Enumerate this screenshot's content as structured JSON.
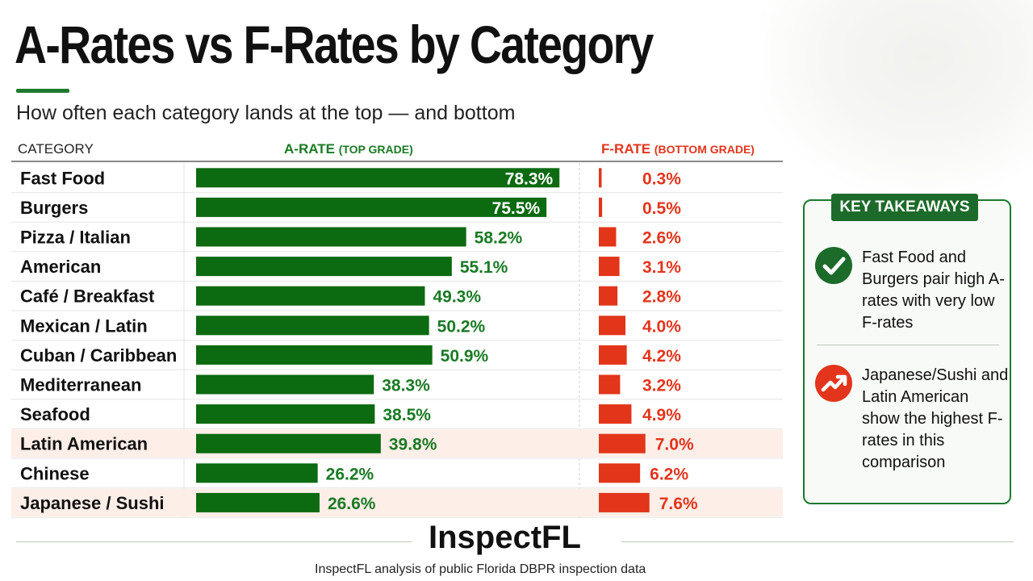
{
  "header": {
    "title": "A-Rates vs F-Rates by Category",
    "subtitle": "How often each category lands at the top — and bottom"
  },
  "columns": {
    "category": "CATEGORY",
    "a_rate": "A-RATE",
    "a_rate_note": "(TOP GRADE)",
    "f_rate": "F-RATE",
    "f_rate_note": "(BOTTOM GRADE)"
  },
  "chart_data": {
    "type": "bar",
    "title": "A-Rates vs F-Rates by Category",
    "categories": [
      "Fast Food",
      "Burgers",
      "Pizza / Italian",
      "American",
      "Café / Breakfast",
      "Mexican / Latin",
      "Cuban / Caribbean",
      "Mediterranean",
      "Seafood",
      "Latin American",
      "Chinese",
      "Japanese / Sushi"
    ],
    "series": [
      {
        "name": "A-RATE",
        "values": [
          78.3,
          75.5,
          58.2,
          55.1,
          49.3,
          50.2,
          50.9,
          38.3,
          38.5,
          39.8,
          26.2,
          26.6
        ],
        "color": "#0c6a10"
      },
      {
        "name": "F-RATE",
        "values": [
          0.3,
          0.5,
          2.6,
          3.1,
          2.8,
          4.0,
          4.2,
          3.2,
          4.9,
          7.0,
          6.2,
          7.6
        ],
        "color": "#e23519"
      }
    ],
    "highlighted_categories": [
      "Latin American",
      "Japanese / Sushi"
    ],
    "value_suffix": "%",
    "label_color_a": "#1a7a24",
    "label_color_f": "#e2351c",
    "highlight_row_color": "#fdeee8"
  },
  "takeaways": {
    "heading": "KEY TAKEAWAYS",
    "items": [
      {
        "icon": "checkmark-icon",
        "text": "Fast Food and Burgers pair high A-rates with very low F-rates",
        "color": "#1d6b2a"
      },
      {
        "icon": "trend-up-icon",
        "text": "Japanese/Sushi and Latin American show the highest F-rates in this comparison",
        "color": "#e2351c"
      }
    ]
  },
  "footer": {
    "brand": "InspectFL",
    "source": "InspectFL analysis of public Florida DBPR inspection data"
  }
}
